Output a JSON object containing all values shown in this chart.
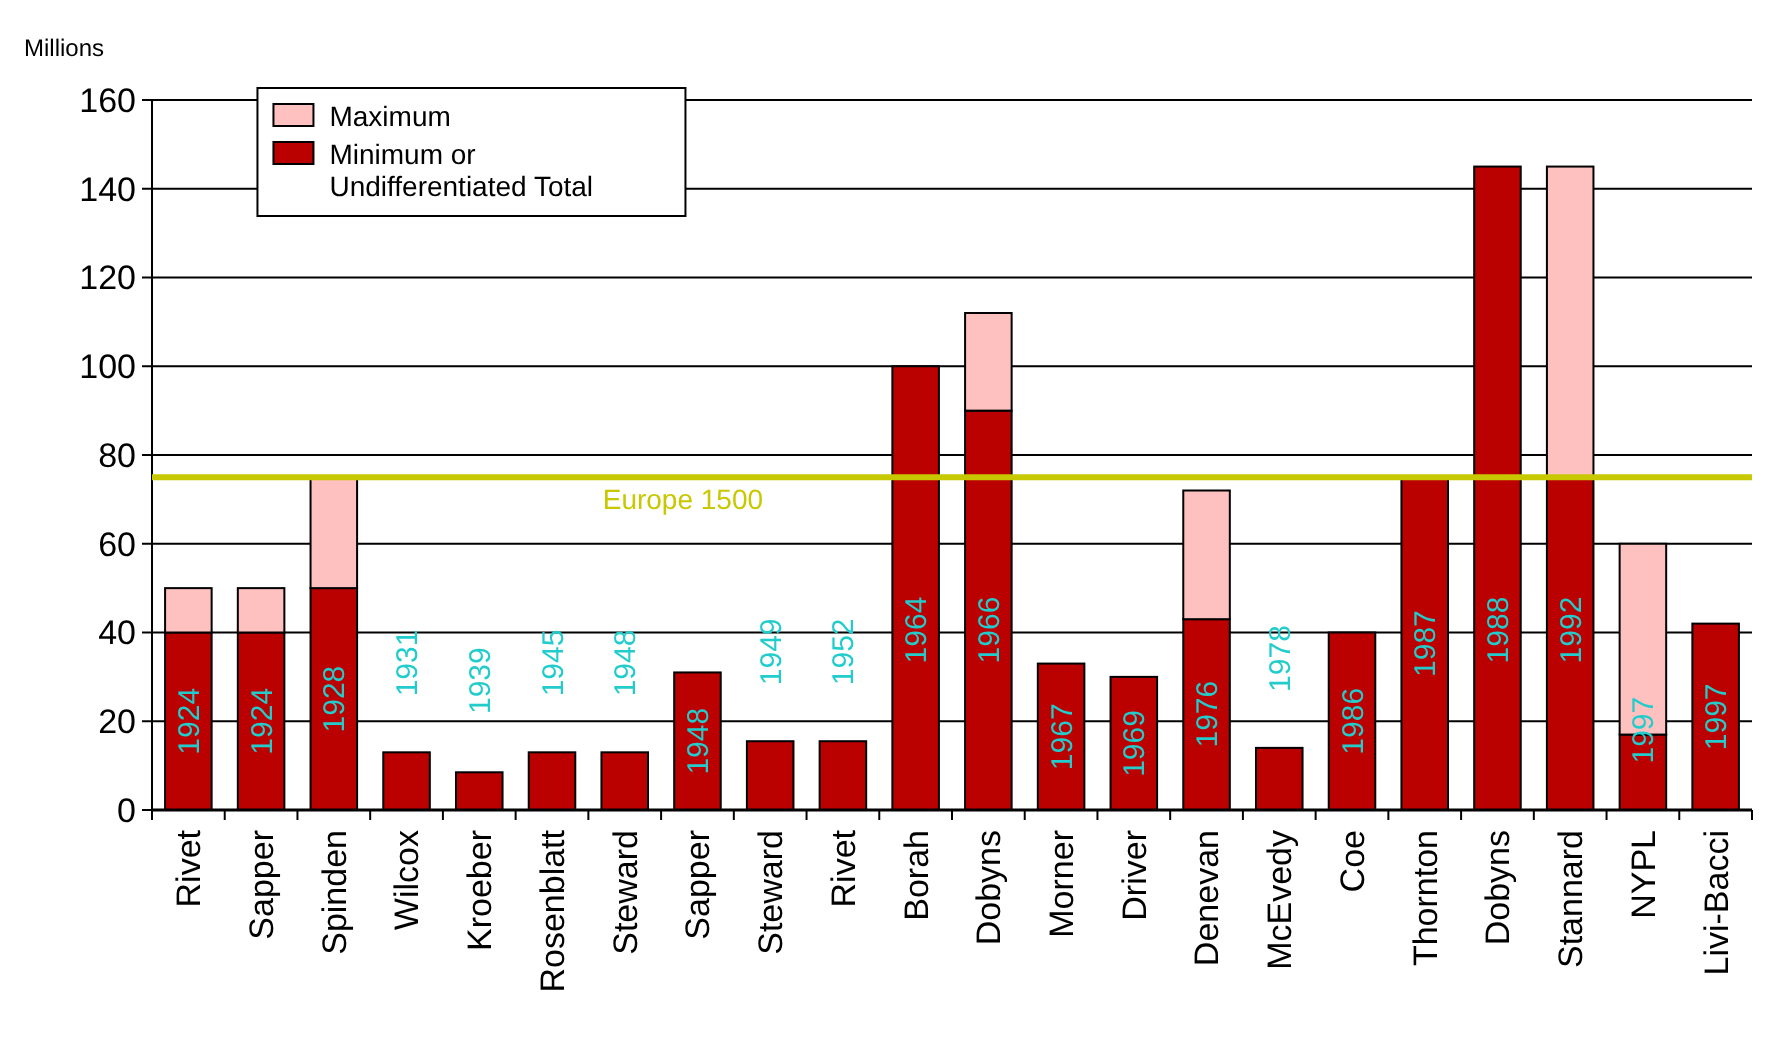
{
  "chart_data": {
    "type": "bar",
    "stacked": true,
    "ylabel": "Millions",
    "categories": [
      "Rivet",
      "Sapper",
      "Spinden",
      "Wilcox",
      "Kroeber",
      "Rosenblatt",
      "Steward",
      "Sapper",
      "Steward",
      "Rivet",
      "Borah",
      "Dobyns",
      "Morner",
      "Driver",
      "Denevan",
      "McEvedy",
      "Coe",
      "Thornton",
      "Dobyns",
      "Stannard",
      "NYPL",
      "Livi-Bacci"
    ],
    "series": [
      {
        "name": "Minimum or Undifferentiated Total",
        "color": "#bb0000",
        "values": [
          40,
          40,
          50,
          13,
          8.5,
          13,
          13,
          31,
          15.5,
          15.5,
          100,
          90,
          33,
          30,
          43,
          14,
          40,
          75,
          145,
          75,
          17,
          42
        ]
      },
      {
        "name": "Maximum",
        "color": "#ffc0c0",
        "values": [
          10,
          10,
          25,
          null,
          null,
          null,
          null,
          null,
          null,
          null,
          null,
          22,
          null,
          null,
          29,
          null,
          null,
          null,
          null,
          70,
          43,
          null
        ]
      }
    ],
    "ylim": [
      0,
      160
    ],
    "yticks": [
      0,
      20,
      40,
      60,
      80,
      100,
      120,
      140,
      160
    ],
    "grid": "y",
    "legend": "top left",
    "ref_lines": [
      {
        "axis": "y",
        "value": 75,
        "label": "Europe 1500",
        "color": "#c8c800"
      }
    ],
    "annotations": [
      "1924",
      "1924",
      "1928",
      "1931",
      "1939",
      "1945",
      "1948",
      "1948",
      "1949",
      "1952",
      "1964",
      "1966",
      "1967",
      "1969",
      "1976",
      "1978",
      "1986",
      "1987",
      "1988",
      "1992",
      "1997",
      "1997"
    ]
  }
}
